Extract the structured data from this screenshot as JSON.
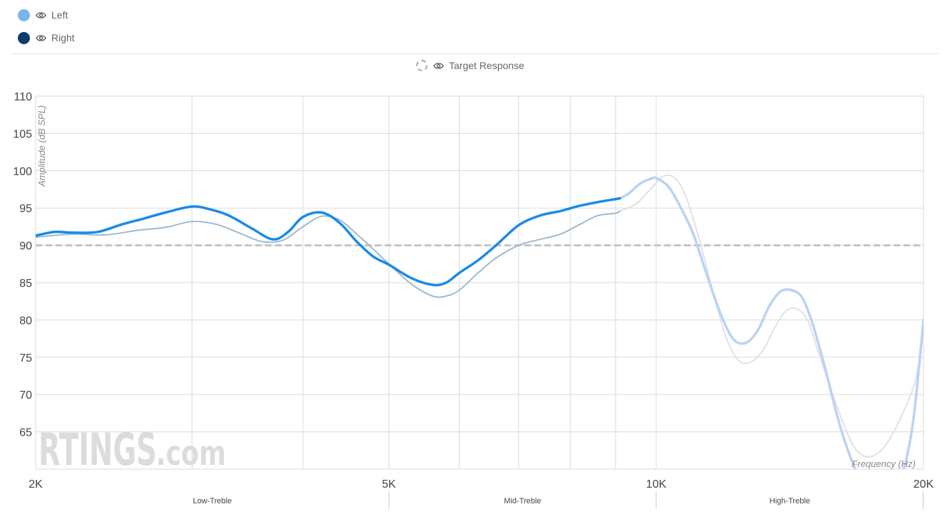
{
  "legend": {
    "items": [
      {
        "label": "Left",
        "color": "#7ab4f0",
        "active": true
      },
      {
        "label": "Right",
        "color": "#0b3b6f",
        "active": false
      }
    ],
    "target_label": "Target Response"
  },
  "watermark": {
    "text": "RTINGS",
    "suffix": ".com"
  },
  "chart_data": {
    "type": "line",
    "xlabel": "Frequency (Hz)",
    "ylabel": "Amplitude (dB SPL)",
    "x_scale": "log",
    "xlim": [
      2000,
      20000
    ],
    "ylim": [
      60,
      110
    ],
    "x_ticks": [
      {
        "value": 2000,
        "label": "2K"
      },
      {
        "value": 5000,
        "label": "5K"
      },
      {
        "value": 10000,
        "label": "10K"
      },
      {
        "value": 20000,
        "label": "20K"
      }
    ],
    "y_ticks": [
      65,
      70,
      75,
      80,
      85,
      90,
      95,
      100,
      105,
      110
    ],
    "x_gridlines": [
      2000,
      3000,
      4000,
      5000,
      6000,
      7000,
      8000,
      9000,
      10000,
      20000
    ],
    "regions": [
      {
        "label": "Low-Treble",
        "from": 2000,
        "to": 5000
      },
      {
        "label": "Mid-Treble",
        "from": 5000,
        "to": 10000
      },
      {
        "label": "High-Treble",
        "from": 10000,
        "to": 20000
      }
    ],
    "target": {
      "value": 90,
      "style": "dashed"
    },
    "series": [
      {
        "name": "Left",
        "color": "#1a8ae8",
        "fade_color": "#b9d3f3",
        "fade_from": 9100,
        "x": [
          2000,
          2100,
          2200,
          2350,
          2500,
          2650,
          2800,
          3000,
          3150,
          3300,
          3500,
          3700,
          3850,
          4000,
          4200,
          4400,
          4600,
          4800,
          5000,
          5300,
          5600,
          5800,
          6000,
          6300,
          6600,
          7000,
          7400,
          7800,
          8200,
          8600,
          9000,
          9100,
          9300,
          9600,
          9900,
          10000,
          10300,
          10600,
          11000,
          11400,
          11800,
          12200,
          12600,
          13000,
          13400,
          13800,
          14200,
          14600,
          15000,
          15500,
          16000,
          16500,
          17000,
          17500,
          18000,
          18500,
          19000,
          19500,
          20000
        ],
        "y": [
          91.3,
          91.8,
          91.7,
          91.8,
          92.8,
          93.6,
          94.4,
          95.2,
          94.8,
          94.0,
          92.3,
          90.8,
          91.8,
          93.8,
          94.4,
          93.0,
          90.5,
          88.5,
          87.4,
          85.6,
          84.7,
          85.0,
          86.3,
          88.0,
          90.0,
          92.7,
          94.0,
          94.6,
          95.3,
          95.8,
          96.2,
          96.3,
          96.9,
          98.3,
          99.0,
          99.0,
          98.0,
          95.6,
          91.6,
          86.1,
          81.0,
          77.5,
          76.9,
          78.5,
          81.8,
          83.8,
          84.0,
          83.0,
          79.5,
          73.5,
          67.0,
          62.0,
          58.5,
          57.0,
          56.5,
          57.5,
          60.0,
          67.0,
          80.0
        ]
      },
      {
        "name": "Right",
        "color": "#9fb9d2",
        "fade_color": "#dfe2e6",
        "fade_from": 9100,
        "x": [
          2000,
          2200,
          2400,
          2600,
          2800,
          3000,
          3200,
          3400,
          3600,
          3800,
          4000,
          4200,
          4400,
          4600,
          4800,
          5000,
          5300,
          5600,
          5800,
          6000,
          6300,
          6600,
          7000,
          7400,
          7800,
          8200,
          8600,
          9000,
          9100,
          9500,
          9900,
          10200,
          10500,
          10800,
          11200,
          11600,
          12000,
          12400,
          12800,
          13200,
          13600,
          14000,
          14400,
          14800,
          15200,
          15700,
          16200,
          16700,
          17200,
          17700,
          18200,
          18700,
          19200,
          19600,
          20000
        ],
        "y": [
          91.1,
          91.5,
          91.4,
          92.0,
          92.4,
          93.2,
          92.8,
          91.6,
          90.5,
          90.7,
          92.5,
          93.9,
          93.4,
          91.5,
          89.5,
          87.5,
          84.8,
          83.2,
          83.2,
          84.0,
          86.3,
          88.3,
          90.0,
          90.8,
          91.5,
          92.8,
          94.0,
          94.3,
          94.6,
          95.6,
          97.8,
          99.3,
          99.0,
          96.5,
          90.5,
          83.5,
          77.5,
          74.5,
          74.4,
          76.0,
          79.0,
          81.2,
          81.5,
          80.0,
          76.0,
          71.0,
          66.5,
          63.0,
          61.7,
          62.0,
          63.5,
          66.0,
          69.0,
          72.0,
          78.0
        ]
      }
    ]
  }
}
